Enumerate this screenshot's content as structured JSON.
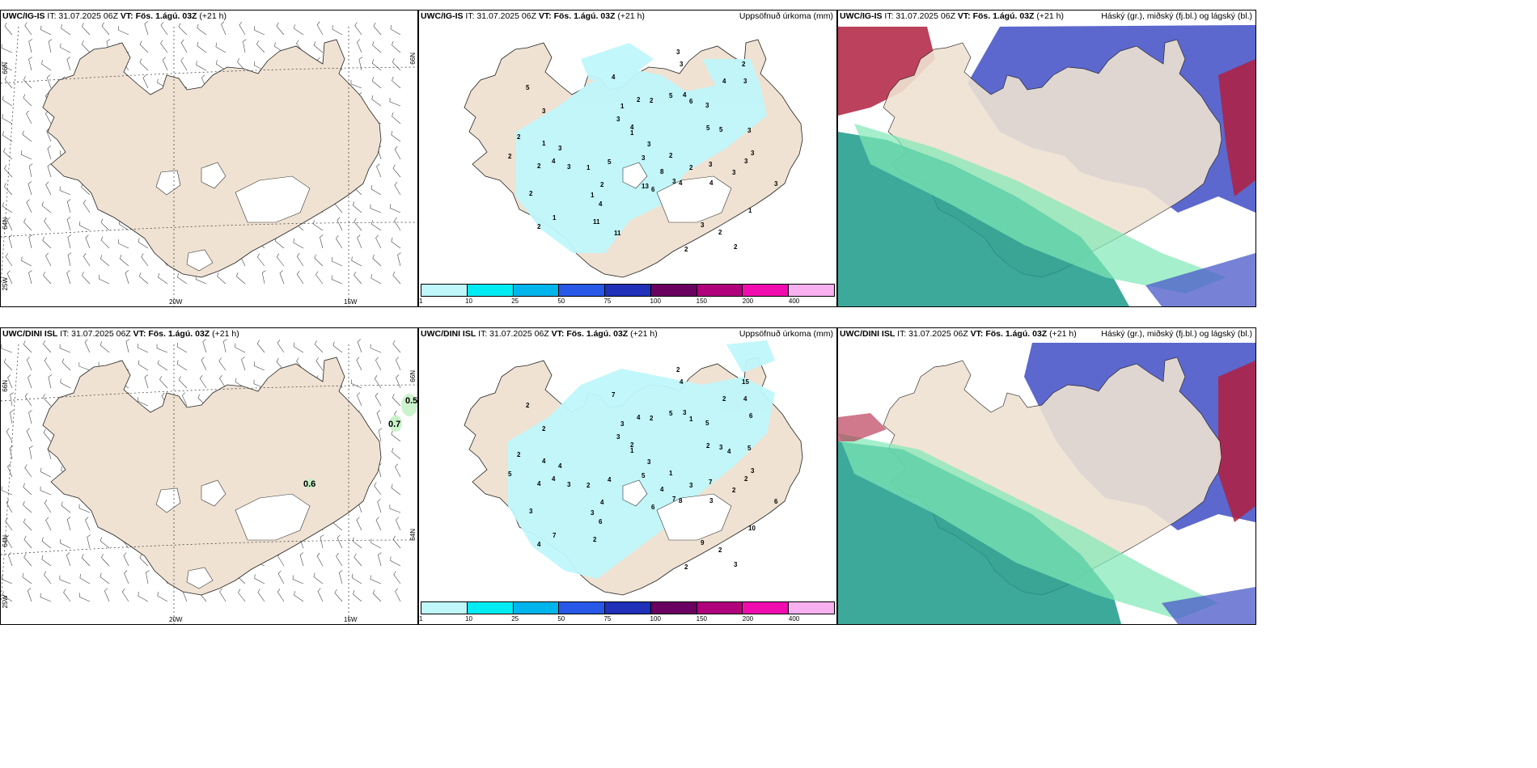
{
  "colors": {
    "land": "#efe2d2",
    "precip": "#bff7fb",
    "high_cloud": "#4a58c8",
    "mid_cloud": "#1a9a8a",
    "low_cloud": "#7fe8b6",
    "red_cloud": "#b02040"
  },
  "panels": {
    "top_left": {
      "model": "UWC/IG-IS",
      "it": "IT: 31.07.2025 06Z",
      "vt": "VT: Fös. 1.ágú. 03Z",
      "lead": "(+21 h)",
      "right": ""
    },
    "top_mid": {
      "model": "UWC/IG-IS",
      "it": "IT: 31.07.2025 06Z",
      "vt": "VT: Fös. 1.ágú. 03Z",
      "lead": "(+21 h)",
      "right": "Uppsöfnuð úrkoma (mm)"
    },
    "top_right": {
      "model": "UWC/IG-IS",
      "it": "IT: 31.07.2025 06Z",
      "vt": "VT: Fös. 1.ágú. 03Z",
      "lead": "(+21 h)",
      "right": "Háský (gr.), miðský (fj.bl.) og lágský (bl.)"
    },
    "bot_left": {
      "model": "UWC/DINI ISL",
      "it": "IT: 31.07.2025 06Z",
      "vt": "VT: Fös. 1.ágú. 03Z",
      "lead": "(+21 h)",
      "right": ""
    },
    "bot_mid": {
      "model": "UWC/DINI ISL",
      "it": "IT: 31.07.2025 06Z",
      "vt": "VT: Fös. 1.ágú. 03Z",
      "lead": "(+21 h)",
      "right": "Uppsöfnuð úrkoma (mm)"
    },
    "bot_right": {
      "model": "UWC/DINI ISL",
      "it": "IT: 31.07.2025 06Z",
      "vt": "VT: Fös. 1.ágú. 03Z",
      "lead": "(+21 h)",
      "right": "Háský (gr.), miðský (fj.bl.) og lágský (bl.)"
    }
  },
  "axes": {
    "lat66": "66N",
    "lat64": "64N",
    "lon20": "20W",
    "lon15": "15W",
    "lon25": "25W"
  },
  "colorbar": {
    "ticks": [
      "1",
      "10",
      "25",
      "50",
      "75",
      "100",
      "150",
      "200",
      "400"
    ],
    "colors": [
      "#bff7fb",
      "#00ecf4",
      "#00b4ec",
      "#2858e8",
      "#2030b8",
      "#6a0060",
      "#b0007c",
      "#f00cae",
      "#f8b0f0"
    ]
  },
  "wind_values": {
    "bot": [
      "0.5",
      "0.7",
      "0.6"
    ]
  },
  "precip_top": [
    "2",
    "1",
    "2",
    "2",
    "1",
    "3",
    "11",
    "13",
    "11",
    "5",
    "6",
    "3",
    "3",
    "2",
    "4",
    "3",
    "4",
    "5",
    "1",
    "4",
    "2",
    "3",
    "1",
    "6",
    "5",
    "2",
    "3",
    "2",
    "3",
    "3",
    "4",
    "3",
    "5",
    "3",
    "8",
    "3",
    "4",
    "2",
    "3",
    "4",
    "2",
    "3",
    "3",
    "4",
    "3",
    "2",
    "5",
    "3",
    "3",
    "3",
    "2",
    "4",
    "1",
    "2",
    "2",
    "1",
    "1",
    "2"
  ],
  "precip_bot": [
    "2",
    "1",
    "3",
    "3",
    "4",
    "2",
    "4",
    "3",
    "2",
    "7",
    "7",
    "15",
    "5",
    "3",
    "6",
    "5",
    "5",
    "7",
    "4",
    "7",
    "6",
    "8",
    "9",
    "4",
    "5",
    "4",
    "2",
    "6",
    "4",
    "3",
    "3",
    "4",
    "4",
    "3",
    "4",
    "5",
    "3",
    "3",
    "4",
    "2",
    "2",
    "3",
    "2",
    "10",
    "2",
    "2",
    "4",
    "3",
    "2",
    "6",
    "4",
    "3",
    "2",
    "1",
    "2",
    "1",
    "2",
    "2"
  ]
}
